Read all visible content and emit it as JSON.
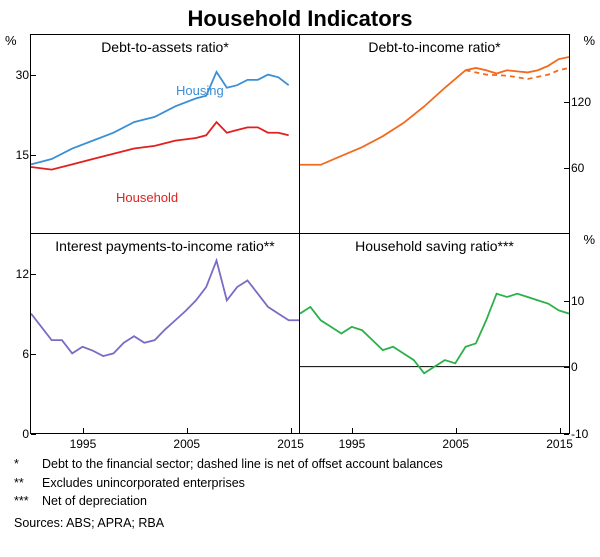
{
  "title": "Household Indicators",
  "panels": {
    "tl": {
      "title": "Debt-to-assets ratio*",
      "y_unit": "%",
      "y_ticks": [
        15,
        30
      ],
      "y_range": [
        0,
        37.5
      ],
      "x_range": [
        1990,
        2016
      ],
      "x_ticks": [
        1995,
        2005,
        2015
      ],
      "series": [
        {
          "name": "Housing",
          "label": "Housing",
          "color": "#3b8fd4",
          "label_pos": {
            "x": 145,
            "y": 48
          },
          "points": [
            [
              1990,
              13
            ],
            [
              1992,
              14
            ],
            [
              1994,
              16
            ],
            [
              1996,
              17.5
            ],
            [
              1998,
              19
            ],
            [
              2000,
              21
            ],
            [
              2002,
              22
            ],
            [
              2004,
              24
            ],
            [
              2006,
              25.5
            ],
            [
              2007,
              26
            ],
            [
              2008,
              30.5
            ],
            [
              2009,
              27.5
            ],
            [
              2010,
              28
            ],
            [
              2011,
              29
            ],
            [
              2012,
              29
            ],
            [
              2013,
              30
            ],
            [
              2014,
              29.5
            ],
            [
              2015,
              28
            ]
          ]
        },
        {
          "name": "Household",
          "label": "Household",
          "color": "#e02020",
          "label_pos": {
            "x": 85,
            "y": 155
          },
          "points": [
            [
              1990,
              12.5
            ],
            [
              1992,
              12
            ],
            [
              1994,
              13
            ],
            [
              1996,
              14
            ],
            [
              1998,
              15
            ],
            [
              2000,
              16
            ],
            [
              2002,
              16.5
            ],
            [
              2004,
              17.5
            ],
            [
              2006,
              18
            ],
            [
              2007,
              18.5
            ],
            [
              2008,
              21
            ],
            [
              2009,
              19
            ],
            [
              2010,
              19.5
            ],
            [
              2011,
              20
            ],
            [
              2012,
              20
            ],
            [
              2013,
              19
            ],
            [
              2014,
              19
            ],
            [
              2015,
              18.5
            ]
          ]
        }
      ]
    },
    "tr": {
      "title": "Debt-to-income ratio*",
      "y_unit": "%",
      "y_ticks": [
        60,
        120
      ],
      "y_range": [
        0,
        180
      ],
      "x_range": [
        1990,
        2016
      ],
      "x_ticks": [
        1995,
        2005,
        2015
      ],
      "series": [
        {
          "name": "Debt-to-income",
          "color": "#f26a1b",
          "points": [
            [
              1990,
              62
            ],
            [
              1992,
              62
            ],
            [
              1994,
              70
            ],
            [
              1996,
              78
            ],
            [
              1998,
              88
            ],
            [
              2000,
              100
            ],
            [
              2002,
              115
            ],
            [
              2004,
              132
            ],
            [
              2006,
              148
            ],
            [
              2007,
              150
            ],
            [
              2008,
              148
            ],
            [
              2009,
              145
            ],
            [
              2010,
              148
            ],
            [
              2011,
              147
            ],
            [
              2012,
              146
            ],
            [
              2013,
              148
            ],
            [
              2014,
              152
            ],
            [
              2015,
              158
            ],
            [
              2016,
              160
            ]
          ]
        },
        {
          "name": "Debt-to-income-dashed",
          "color": "#f26a1b",
          "dashed": true,
          "points": [
            [
              2006,
              148
            ],
            [
              2008,
              144
            ],
            [
              2010,
              143
            ],
            [
              2012,
              140
            ],
            [
              2014,
              144
            ],
            [
              2015,
              148
            ],
            [
              2016,
              150
            ]
          ]
        }
      ]
    },
    "bl": {
      "title": "Interest payments-to-income ratio**",
      "y_unit": "",
      "y_ticks": [
        0,
        6,
        12
      ],
      "y_range": [
        0,
        15
      ],
      "x_range": [
        1990,
        2016
      ],
      "x_ticks": [
        1995,
        2005,
        2015
      ],
      "series": [
        {
          "name": "Interest-payments",
          "color": "#7a6bc4",
          "points": [
            [
              1990,
              9
            ],
            [
              1991,
              8
            ],
            [
              1992,
              7
            ],
            [
              1993,
              7
            ],
            [
              1994,
              6
            ],
            [
              1995,
              6.5
            ],
            [
              1996,
              6.2
            ],
            [
              1997,
              5.8
            ],
            [
              1998,
              6
            ],
            [
              1999,
              6.8
            ],
            [
              2000,
              7.3
            ],
            [
              2001,
              6.8
            ],
            [
              2002,
              7
            ],
            [
              2003,
              7.8
            ],
            [
              2004,
              8.5
            ],
            [
              2005,
              9.2
            ],
            [
              2006,
              10
            ],
            [
              2007,
              11
            ],
            [
              2008,
              13
            ],
            [
              2009,
              10
            ],
            [
              2010,
              11
            ],
            [
              2011,
              11.5
            ],
            [
              2012,
              10.5
            ],
            [
              2013,
              9.5
            ],
            [
              2014,
              9
            ],
            [
              2015,
              8.5
            ],
            [
              2016,
              8.5
            ]
          ]
        }
      ]
    },
    "br": {
      "title": "Household saving ratio***",
      "y_unit": "%",
      "y_ticks": [
        -10,
        0,
        10
      ],
      "y_range": [
        -10,
        20
      ],
      "x_range": [
        1990,
        2016
      ],
      "x_ticks": [
        1995,
        2005,
        2015
      ],
      "zero_line": true,
      "series": [
        {
          "name": "Saving-ratio",
          "color": "#2bb04a",
          "points": [
            [
              1990,
              8
            ],
            [
              1991,
              9
            ],
            [
              1992,
              7
            ],
            [
              1993,
              6
            ],
            [
              1994,
              5
            ],
            [
              1995,
              6
            ],
            [
              1996,
              5.5
            ],
            [
              1997,
              4
            ],
            [
              1998,
              2.5
            ],
            [
              1999,
              3
            ],
            [
              2000,
              2
            ],
            [
              2001,
              1
            ],
            [
              2002,
              -1
            ],
            [
              2003,
              0
            ],
            [
              2004,
              1
            ],
            [
              2005,
              0.5
            ],
            [
              2006,
              3
            ],
            [
              2007,
              3.5
            ],
            [
              2008,
              7
            ],
            [
              2009,
              11
            ],
            [
              2010,
              10.5
            ],
            [
              2011,
              11
            ],
            [
              2012,
              10.5
            ],
            [
              2013,
              10
            ],
            [
              2014,
              9.5
            ],
            [
              2015,
              8.5
            ],
            [
              2016,
              8
            ]
          ]
        }
      ]
    }
  },
  "footnotes": [
    {
      "marker": "*",
      "text": "Debt to the financial sector; dashed line is net of offset account balances"
    },
    {
      "marker": "**",
      "text": "Excludes unincorporated enterprises"
    },
    {
      "marker": "***",
      "text": "Net of depreciation"
    }
  ],
  "sources_label": "Sources:",
  "sources": "ABS; APRA; RBA",
  "line_width": 1.8,
  "background_color": "#ffffff"
}
